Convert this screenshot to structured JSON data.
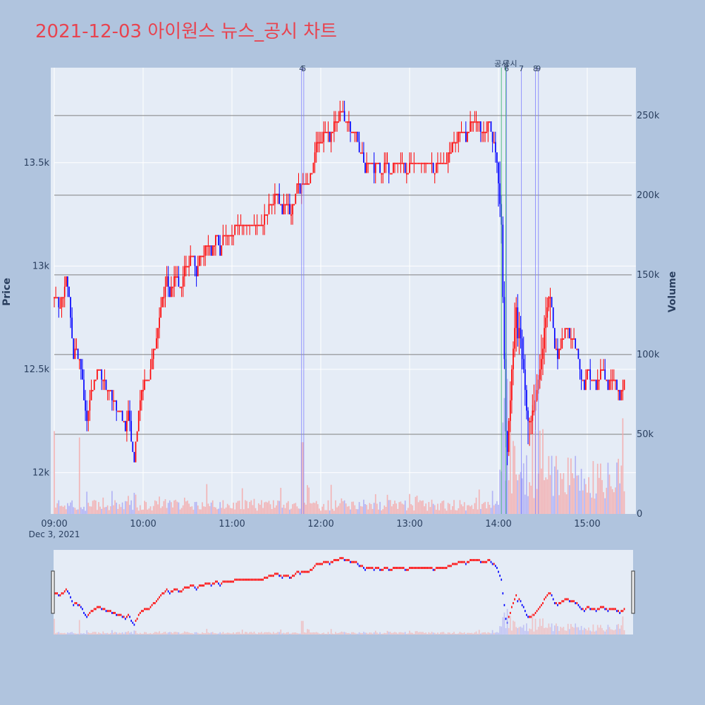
{
  "chart_data": {
    "type": "candlestick",
    "title": "2021-12-03 아이원스 뉴스_공시 차트",
    "date_label": "Dec 3, 2021",
    "y_axis_left": {
      "label": "Price",
      "range": [
        11800,
        13960
      ],
      "ticks": [
        12000,
        12500,
        13000,
        13500
      ],
      "tick_labels": [
        "12k",
        "12.5k",
        "13k",
        "13.5k"
      ]
    },
    "y_axis_right": {
      "label": "Volume",
      "range": [
        0,
        280000
      ],
      "ticks": [
        0,
        50000,
        100000,
        150000,
        200000,
        250000
      ],
      "tick_labels": [
        "0",
        "50k",
        "100k",
        "150k",
        "200k",
        "250k"
      ]
    },
    "x_axis": {
      "range_minutes": [
        0,
        390
      ],
      "ticks": [
        0,
        60,
        120,
        180,
        240,
        300,
        360
      ],
      "tick_labels": [
        "09:00",
        "10:00",
        "11:00",
        "12:00",
        "13:00",
        "14:00",
        "15:00"
      ]
    },
    "colors": {
      "up": "#ff0000",
      "down": "#0000ff",
      "up_volume": "#f4a9a9",
      "down_volume": "#a9a9f4",
      "news_line": "#8080ff",
      "disclosure_line": "#3cb371",
      "plot_bg": "#e5ecf6",
      "page_bg": "#b0c4de",
      "volume_gridline": "#7f7f7f"
    },
    "price_path": [
      [
        0,
        12850
      ],
      [
        4,
        12800
      ],
      [
        6,
        12850
      ],
      [
        8,
        12950
      ],
      [
        10,
        12850
      ],
      [
        12,
        12650
      ],
      [
        13,
        12550
      ],
      [
        15,
        12600
      ],
      [
        18,
        12500
      ],
      [
        20,
        12350
      ],
      [
        22,
        12250
      ],
      [
        24,
        12350
      ],
      [
        26,
        12400
      ],
      [
        28,
        12450
      ],
      [
        30,
        12500
      ],
      [
        32,
        12450
      ],
      [
        36,
        12400
      ],
      [
        40,
        12350
      ],
      [
        42,
        12300
      ],
      [
        44,
        12300
      ],
      [
        46,
        12250
      ],
      [
        48,
        12200
      ],
      [
        50,
        12300
      ],
      [
        52,
        12150
      ],
      [
        54,
        12050
      ],
      [
        56,
        12200
      ],
      [
        58,
        12350
      ],
      [
        60,
        12400
      ],
      [
        62,
        12450
      ],
      [
        64,
        12450
      ],
      [
        66,
        12550
      ],
      [
        68,
        12600
      ],
      [
        70,
        12700
      ],
      [
        72,
        12800
      ],
      [
        74,
        12850
      ],
      [
        76,
        12950
      ],
      [
        78,
        12850
      ],
      [
        80,
        12900
      ],
      [
        82,
        12950
      ],
      [
        84,
        12900
      ],
      [
        86,
        12900
      ],
      [
        88,
        13000
      ],
      [
        90,
        13000
      ],
      [
        94,
        13050
      ],
      [
        96,
        12950
      ],
      [
        98,
        13050
      ],
      [
        100,
        13050
      ],
      [
        104,
        13100
      ],
      [
        106,
        13050
      ],
      [
        110,
        13150
      ],
      [
        112,
        13050
      ],
      [
        114,
        13150
      ],
      [
        116,
        13150
      ],
      [
        120,
        13150
      ],
      [
        124,
        13200
      ],
      [
        128,
        13200
      ],
      [
        132,
        13200
      ],
      [
        136,
        13200
      ],
      [
        140,
        13200
      ],
      [
        144,
        13250
      ],
      [
        146,
        13300
      ],
      [
        148,
        13300
      ],
      [
        150,
        13350
      ],
      [
        152,
        13300
      ],
      [
        154,
        13250
      ],
      [
        156,
        13300
      ],
      [
        160,
        13250
      ],
      [
        162,
        13300
      ],
      [
        164,
        13400
      ],
      [
        166,
        13350
      ],
      [
        168,
        13400
      ],
      [
        172,
        13400
      ],
      [
        174,
        13450
      ],
      [
        176,
        13550
      ],
      [
        178,
        13600
      ],
      [
        180,
        13600
      ],
      [
        184,
        13650
      ],
      [
        186,
        13600
      ],
      [
        188,
        13650
      ],
      [
        190,
        13700
      ],
      [
        192,
        13700
      ],
      [
        194,
        13750
      ],
      [
        196,
        13700
      ],
      [
        198,
        13700
      ],
      [
        200,
        13650
      ],
      [
        204,
        13650
      ],
      [
        206,
        13550
      ],
      [
        208,
        13550
      ],
      [
        210,
        13450
      ],
      [
        212,
        13500
      ],
      [
        214,
        13500
      ],
      [
        216,
        13450
      ],
      [
        218,
        13500
      ],
      [
        220,
        13450
      ],
      [
        222,
        13450
      ],
      [
        224,
        13500
      ],
      [
        226,
        13450
      ],
      [
        228,
        13450
      ],
      [
        230,
        13500
      ],
      [
        234,
        13500
      ],
      [
        238,
        13450
      ],
      [
        242,
        13500
      ],
      [
        246,
        13500
      ],
      [
        250,
        13500
      ],
      [
        254,
        13500
      ],
      [
        256,
        13450
      ],
      [
        260,
        13500
      ],
      [
        264,
        13500
      ],
      [
        268,
        13550
      ],
      [
        270,
        13600
      ],
      [
        272,
        13600
      ],
      [
        274,
        13650
      ],
      [
        276,
        13650
      ],
      [
        278,
        13600
      ],
      [
        280,
        13650
      ],
      [
        282,
        13700
      ],
      [
        284,
        13700
      ],
      [
        286,
        13700
      ],
      [
        288,
        13650
      ],
      [
        290,
        13650
      ],
      [
        292,
        13650
      ],
      [
        294,
        13700
      ],
      [
        296,
        13600
      ],
      [
        298,
        13550
      ],
      [
        300,
        13400
      ],
      [
        302,
        13200
      ],
      [
        303,
        12850
      ],
      [
        304,
        12550
      ],
      [
        305,
        12200
      ],
      [
        306,
        12100
      ],
      [
        308,
        12350
      ],
      [
        310,
        12600
      ],
      [
        312,
        12800
      ],
      [
        313,
        12650
      ],
      [
        314,
        12700
      ],
      [
        316,
        12550
      ],
      [
        318,
        12400
      ],
      [
        319,
        12300
      ],
      [
        320,
        12250
      ],
      [
        322,
        12250
      ],
      [
        324,
        12300
      ],
      [
        326,
        12400
      ],
      [
        328,
        12500
      ],
      [
        330,
        12600
      ],
      [
        332,
        12750
      ],
      [
        334,
        12850
      ],
      [
        336,
        12800
      ],
      [
        338,
        12600
      ],
      [
        340,
        12550
      ],
      [
        342,
        12600
      ],
      [
        344,
        12650
      ],
      [
        346,
        12700
      ],
      [
        348,
        12650
      ],
      [
        350,
        12650
      ],
      [
        352,
        12600
      ],
      [
        354,
        12550
      ],
      [
        356,
        12450
      ],
      [
        358,
        12400
      ],
      [
        360,
        12500
      ],
      [
        362,
        12450
      ],
      [
        364,
        12450
      ],
      [
        366,
        12400
      ],
      [
        368,
        12450
      ],
      [
        370,
        12500
      ],
      [
        372,
        12450
      ],
      [
        374,
        12400
      ],
      [
        376,
        12450
      ],
      [
        378,
        12450
      ],
      [
        380,
        12400
      ],
      [
        382,
        12350
      ],
      [
        385,
        12450
      ]
    ],
    "news_markers": [
      {
        "label": "4",
        "minute": 167
      },
      {
        "label": "5",
        "minute": 168.5
      },
      {
        "label": "6",
        "minute": 305.5
      },
      {
        "label": "7",
        "minute": 315.5
      },
      {
        "label": "8",
        "minute": 325
      },
      {
        "label": "9",
        "minute": 327
      }
    ],
    "disclosure_markers": [
      {
        "label": "공시",
        "minute": 302
      },
      {
        "label": "공시",
        "minute": 305
      }
    ]
  }
}
